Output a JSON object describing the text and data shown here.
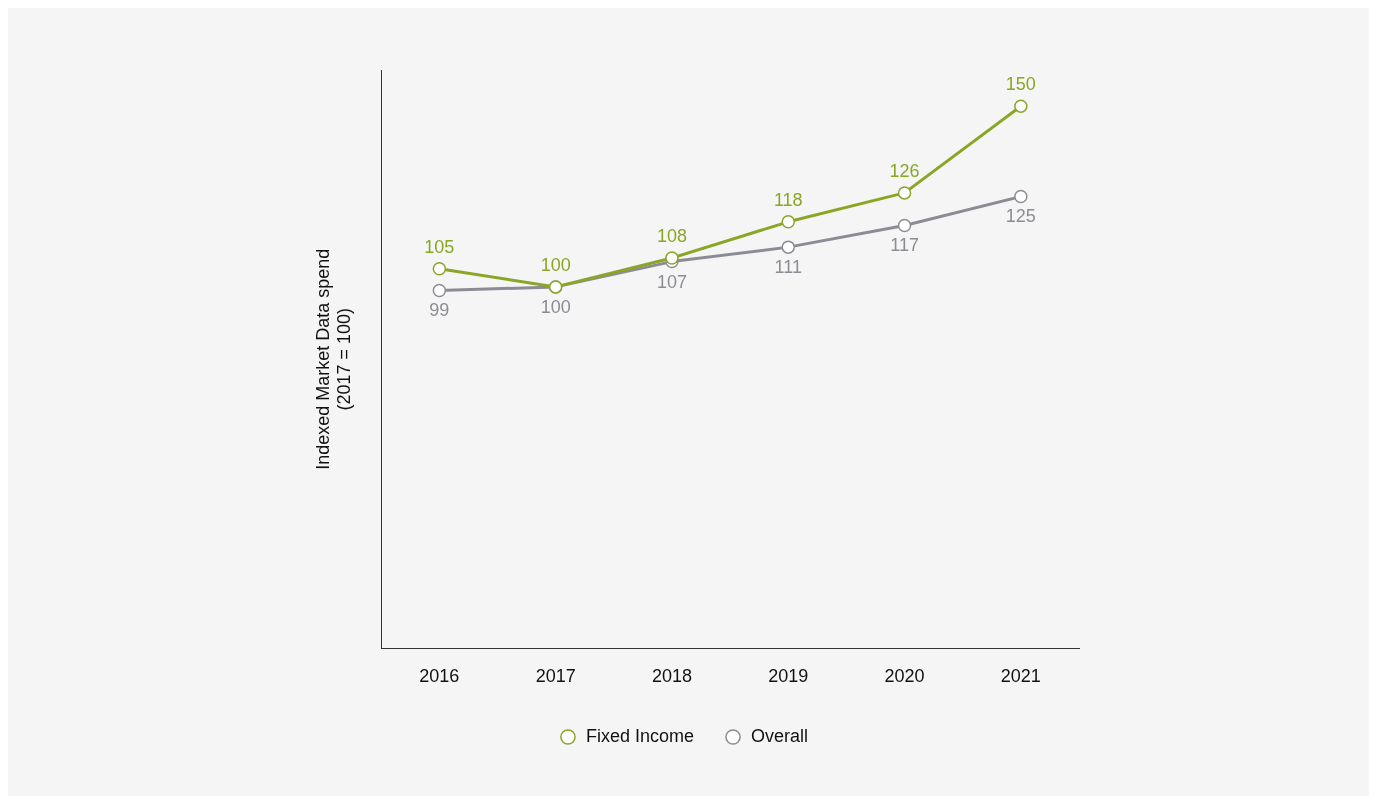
{
  "chart_data": {
    "type": "line",
    "ylabel": "Indexed Market Data spend\n(2017 = 100)",
    "categories": [
      "2016",
      "2017",
      "2018",
      "2019",
      "2020",
      "2021"
    ],
    "series": [
      {
        "name": "Fixed Income",
        "color": "#8aa626",
        "values": [
          105,
          100,
          108,
          118,
          126,
          150
        ]
      },
      {
        "name": "Overall",
        "color": "#8c8c94",
        "values": [
          99,
          100,
          107,
          111,
          117,
          125
        ]
      }
    ],
    "ylim": [
      0,
      160
    ],
    "data_labels": true,
    "tick_labels": "x",
    "grid": false,
    "legend": "bottom",
    "marker": "circle",
    "line_style": "solid"
  }
}
